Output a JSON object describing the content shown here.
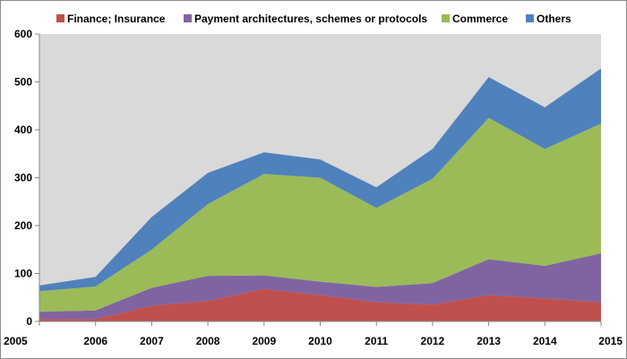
{
  "chart_data": {
    "type": "area",
    "stacked": true,
    "categories": [
      "2005",
      "2006",
      "2007",
      "2008",
      "2009",
      "2010",
      "2011",
      "2012",
      "2013",
      "2014",
      "2015"
    ],
    "series": [
      {
        "name": "Finance; Insurance",
        "color": "#c0504d",
        "values": [
          5,
          5,
          33,
          43,
          68,
          55,
          40,
          35,
          55,
          48,
          40
        ]
      },
      {
        "name": "Payment architectures, schemes or protocols",
        "color": "#8064a2",
        "values": [
          15,
          18,
          37,
          52,
          28,
          28,
          32,
          45,
          75,
          68,
          102
        ]
      },
      {
        "name": "Commerce",
        "color": "#9bbb59",
        "values": [
          43,
          50,
          80,
          150,
          212,
          217,
          165,
          218,
          295,
          244,
          271
        ]
      },
      {
        "name": "Others",
        "color": "#4f81bd",
        "values": [
          12,
          20,
          68,
          65,
          45,
          38,
          43,
          62,
          85,
          87,
          115
        ]
      }
    ],
    "yticks": [
      "0",
      "100",
      "200",
      "300",
      "400",
      "500",
      "600"
    ],
    "ylim": [
      0,
      600
    ],
    "grid": false,
    "legend": "top",
    "plot_background": "#d9d9d9"
  }
}
